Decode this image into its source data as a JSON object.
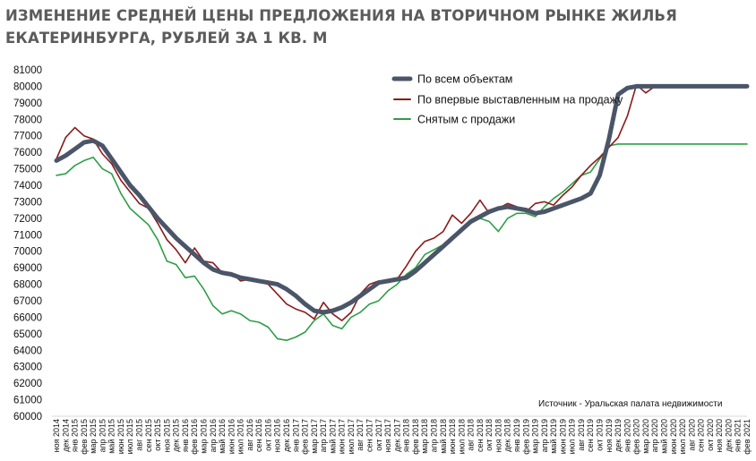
{
  "chart_data": {
    "type": "line",
    "title": "ИЗМЕНЕНИЕ СРЕДНЕЙ ЦЕНЫ ПРЕДЛОЖЕНИЯ НА ВТОРИЧНОМ РЫНКЕ ЖИЛЬЯ ЕКАТЕРИНБУРГА, РУБЛЕЙ ЗА 1 КВ. М",
    "source": "Источник - Уральская палата недвижимости",
    "ylim": [
      60000,
      81000
    ],
    "yticks": [
      60000,
      61000,
      62000,
      63000,
      64000,
      65000,
      66000,
      67000,
      68000,
      69000,
      70000,
      71000,
      72000,
      73000,
      74000,
      75000,
      76000,
      77000,
      78000,
      79000,
      80000,
      81000
    ],
    "grid": false,
    "legend_position": "top-right",
    "categories": [
      "ноя 2014",
      "дек 2014",
      "янв 2015",
      "фев 2015",
      "мар 2015",
      "апр 2015",
      "май 2015",
      "июн 2015",
      "июл 2015",
      "авг 2015",
      "сен 2015",
      "окт 2015",
      "ноя 2015",
      "дек 2015",
      "янв 2016",
      "фев 2016",
      "мар 2016",
      "апр 2016",
      "май 2016",
      "июн 2016",
      "июл 2016",
      "авг 2016",
      "сен 2016",
      "окт 2016",
      "ноя 2016",
      "дек 2016",
      "янв 2017",
      "фев 2017",
      "мар 2017",
      "апр 2017",
      "май 2017",
      "июн 2017",
      "июл 2017",
      "авг 2017",
      "сен 2017",
      "окт 2017",
      "ноя 2017",
      "дек 2017",
      "янв 2018",
      "фев 2018",
      "мар 2018",
      "апр 2018",
      "май 2018",
      "июн 2018",
      "июл 2018",
      "авг 2018",
      "сен 2018",
      "окт 2018",
      "ноя 2018",
      "дек 2018",
      "янв 2019",
      "фев 2019",
      "мар 2019",
      "апр 2019",
      "май 2019",
      "июн 2019",
      "июл 2019",
      "авг 2019",
      "сен 2019",
      "окт 2019",
      "ноя 2019",
      "дек 2019",
      "янв 2020",
      "фев 2020",
      "мар 2020",
      "апр 2020",
      "май 2020",
      "июн 2020",
      "июл 2020",
      "авг 2020",
      "сен 2020",
      "окт 2020",
      "ноя 2020",
      "дек 2020",
      "янв 2021",
      "фев 2021"
    ],
    "series": [
      {
        "name": "По всем объектам",
        "color": "#4a5568",
        "width": 5,
        "values": [
          75500,
          75800,
          76200,
          76600,
          76700,
          76400,
          75600,
          74800,
          74000,
          73400,
          72700,
          72000,
          71400,
          70800,
          70300,
          69800,
          69300,
          68900,
          68700,
          68600,
          68400,
          68300,
          68200,
          68100,
          68000,
          67700,
          67300,
          66800,
          66400,
          66300,
          66400,
          66600,
          66900,
          67300,
          67700,
          68100,
          68200,
          68300,
          68400,
          68800,
          69300,
          69800,
          70300,
          70800,
          71300,
          71800,
          72100,
          72400,
          72600,
          72700,
          72600,
          72500,
          72300,
          72400,
          72600,
          72800,
          73000,
          73200,
          73500,
          74600,
          76800,
          79500,
          79900,
          80000,
          80000,
          80000,
          80000,
          80000,
          80000,
          80000,
          80000,
          80000,
          80000,
          80000,
          80000,
          80000
        ]
      },
      {
        "name": "По впервые выставленным на продажу",
        "color": "#8b1a1a",
        "width": 1.6,
        "values": [
          75600,
          76900,
          77500,
          77000,
          76800,
          75900,
          75300,
          74300,
          73600,
          72900,
          72600,
          71700,
          70700,
          70100,
          69300,
          70200,
          69400,
          69300,
          68700,
          68700,
          68200,
          68300,
          68200,
          68000,
          67400,
          66800,
          66500,
          66300,
          65900,
          66900,
          66200,
          65800,
          66300,
          67400,
          68000,
          68200,
          68100,
          68300,
          69100,
          70000,
          70600,
          70800,
          71200,
          72200,
          71700,
          72300,
          73100,
          72300,
          72600,
          72900,
          72700,
          72400,
          72900,
          73000,
          72800,
          73400,
          73900,
          74600,
          75200,
          75700,
          76300,
          76900,
          78200,
          80100,
          79600,
          80000,
          80000,
          80000,
          80000,
          80000,
          80000,
          80000,
          80000,
          80000,
          80000,
          80000
        ]
      },
      {
        "name": "Снятым с продажи",
        "color": "#2e9e46",
        "width": 1.6,
        "values": [
          74600,
          74700,
          75200,
          75500,
          75700,
          75000,
          74700,
          73500,
          72600,
          72100,
          71600,
          70700,
          69400,
          69200,
          68400,
          68500,
          67700,
          66700,
          66200,
          66400,
          66200,
          65800,
          65700,
          65400,
          64700,
          64600,
          64800,
          65100,
          65800,
          66200,
          65500,
          65300,
          66000,
          66300,
          66800,
          67000,
          67600,
          68000,
          68600,
          69000,
          69800,
          70100,
          70400,
          70900,
          71300,
          71700,
          72000,
          71800,
          71200,
          72000,
          72300,
          72300,
          72100,
          72700,
          73200,
          73600,
          74100,
          74600,
          74800,
          75600,
          76400,
          76500,
          76500,
          76500,
          76500,
          76500,
          76500,
          76500,
          76500,
          76500,
          76500,
          76500,
          76500,
          76500,
          76500,
          76500
        ]
      }
    ]
  }
}
